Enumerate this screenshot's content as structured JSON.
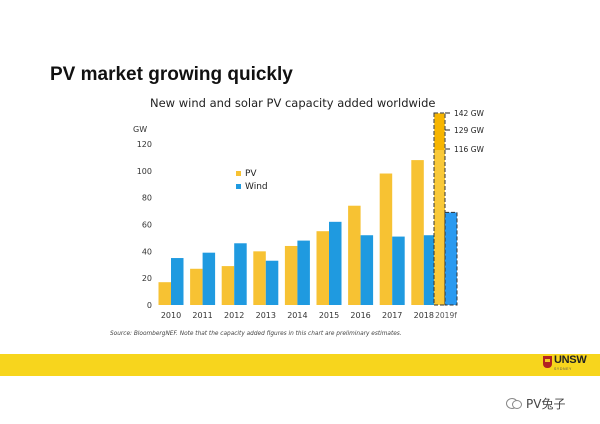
{
  "slide": {
    "title": "PV market growing quickly",
    "source_note": "Source: BloombergNEF. Note that the capacity added figures in this chart are preliminary estimates.",
    "logo_text": "UNSW",
    "logo_subtext": "SYDNEY",
    "watermark_text": "PV兔子",
    "watermark_icon": "wechat-icon",
    "footer_color": "#f7d51d"
  },
  "chart_data": {
    "type": "bar",
    "title": "New wind and solar PV capacity added worldwide",
    "ylabel": "GW",
    "ylim": [
      0,
      120
    ],
    "yticks": [
      0,
      20,
      40,
      60,
      80,
      100,
      120
    ],
    "categories": [
      "2010",
      "2011",
      "2012",
      "2013",
      "2014",
      "2015",
      "2016",
      "2017",
      "2018",
      "2019f"
    ],
    "series": [
      {
        "name": "PV",
        "color": "#f7c233",
        "values": [
          17,
          27,
          29,
          40,
          44,
          55,
          74,
          98,
          108,
          null
        ]
      },
      {
        "name": "Wind",
        "color": "#1f9ae0",
        "values": [
          35,
          39,
          46,
          33,
          48,
          62,
          52,
          51,
          52,
          69
        ]
      }
    ],
    "forecast_2019f": {
      "pv_range_labels": [
        "142 GW",
        "129 GW",
        "116 GW"
      ],
      "pv_range": [
        116,
        142
      ],
      "pv_levels": [
        142,
        129,
        116
      ],
      "pv_color": "#f7b500",
      "pv_fill_color": "#f9c93a",
      "wind_color": "#2a9af0"
    },
    "legend": {
      "placement": "upper-left"
    },
    "grid": false
  }
}
